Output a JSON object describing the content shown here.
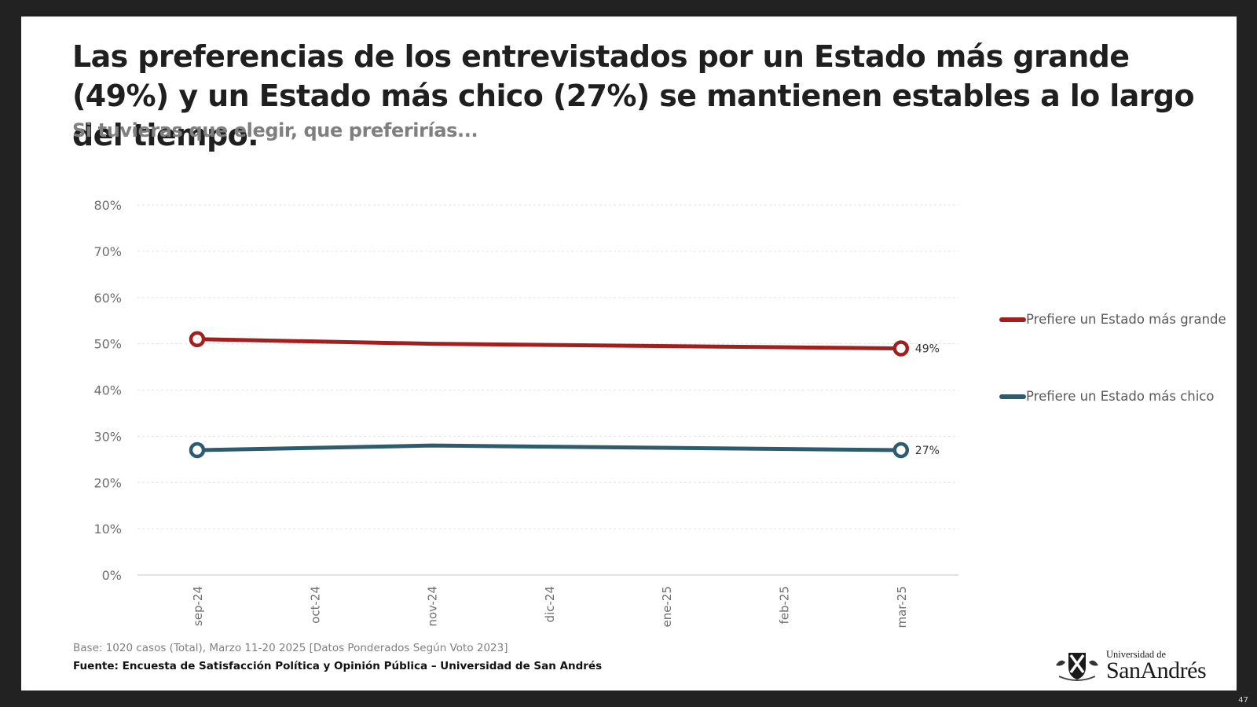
{
  "slide": {
    "title": "Las preferencias de los entrevistados por un Estado más grande (49%) y un Estado más chico (27%) se mantienen estables a lo largo del tiempo.",
    "subtitle": "Si tuvieras que elegir, que preferirías...",
    "footer_base": "Base: 1020 casos (Total), Marzo 11-20 2025 [Datos Ponderados Según Voto 2023]",
    "footer_source": "Fuente: Encuesta de Satisfacción Política y Opinión Pública – Universidad de San Andrés",
    "logo": {
      "line1": "Universidad de",
      "line2": "SanAndrés",
      "icon": "university-crest-icon"
    },
    "page_number": "47"
  },
  "chart_data": {
    "type": "line",
    "title": "Si tuvieras que elegir, que preferirías...",
    "xlabel": "",
    "ylabel": "",
    "categories": [
      "sep-24",
      "oct-24",
      "nov-24",
      "dic-24",
      "ene-25",
      "feb-25",
      "mar-25"
    ],
    "ylim": [
      0,
      80
    ],
    "yticks": [
      0,
      10,
      20,
      30,
      40,
      50,
      60,
      70,
      80
    ],
    "ytick_labels": [
      "0%",
      "10%",
      "20%",
      "30%",
      "40%",
      "50%",
      "60%",
      "70%",
      "80%"
    ],
    "grid": true,
    "legend_position": "right",
    "series": [
      {
        "name": "Prefiere un Estado más grande",
        "color": "#a11f1f",
        "values": [
          51,
          null,
          50,
          null,
          null,
          null,
          49
        ],
        "markers": [
          true,
          false,
          false,
          false,
          false,
          false,
          true
        ],
        "data_labels": [
          null,
          null,
          null,
          null,
          null,
          null,
          "49%"
        ]
      },
      {
        "name": "Prefiere un Estado más chico",
        "color": "#2e5c6e",
        "values": [
          27,
          null,
          28,
          null,
          null,
          null,
          27
        ],
        "markers": [
          true,
          false,
          false,
          false,
          false,
          false,
          true
        ],
        "data_labels": [
          null,
          null,
          null,
          null,
          null,
          null,
          "27%"
        ]
      }
    ]
  }
}
